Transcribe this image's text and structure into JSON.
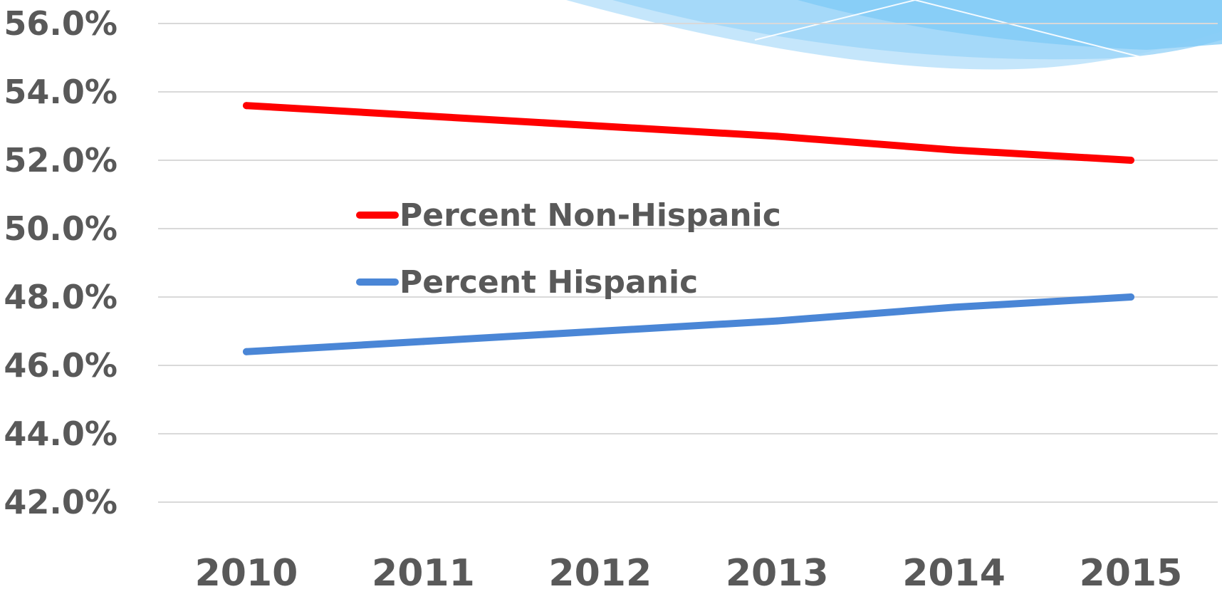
{
  "colors": {
    "non_hispanic": "#ff0000",
    "hispanic": "#4a86d6",
    "axis_text": "#595959",
    "gridline": "#d9d9d9",
    "decoration": "#6ec6f5"
  },
  "chart_data": {
    "type": "line",
    "title": "",
    "xlabel": "",
    "ylabel": "",
    "categories": [
      "2010",
      "2011",
      "2012",
      "2013",
      "2014",
      "2015"
    ],
    "ylim": [
      42.0,
      56.0
    ],
    "y_ticks": [
      "42.0%",
      "44.0%",
      "46.0%",
      "48.0%",
      "50.0%",
      "52.0%",
      "54.0%",
      "56.0%"
    ],
    "grid": true,
    "legend_position": "center-left",
    "series": [
      {
        "name": "Percent Non-Hispanic",
        "color": "#ff0000",
        "values": [
          53.6,
          53.3,
          53.0,
          52.7,
          52.3,
          52.0
        ]
      },
      {
        "name": "Percent Hispanic",
        "color": "#4a86d6",
        "values": [
          46.4,
          46.7,
          47.0,
          47.3,
          47.7,
          48.0
        ]
      }
    ]
  }
}
